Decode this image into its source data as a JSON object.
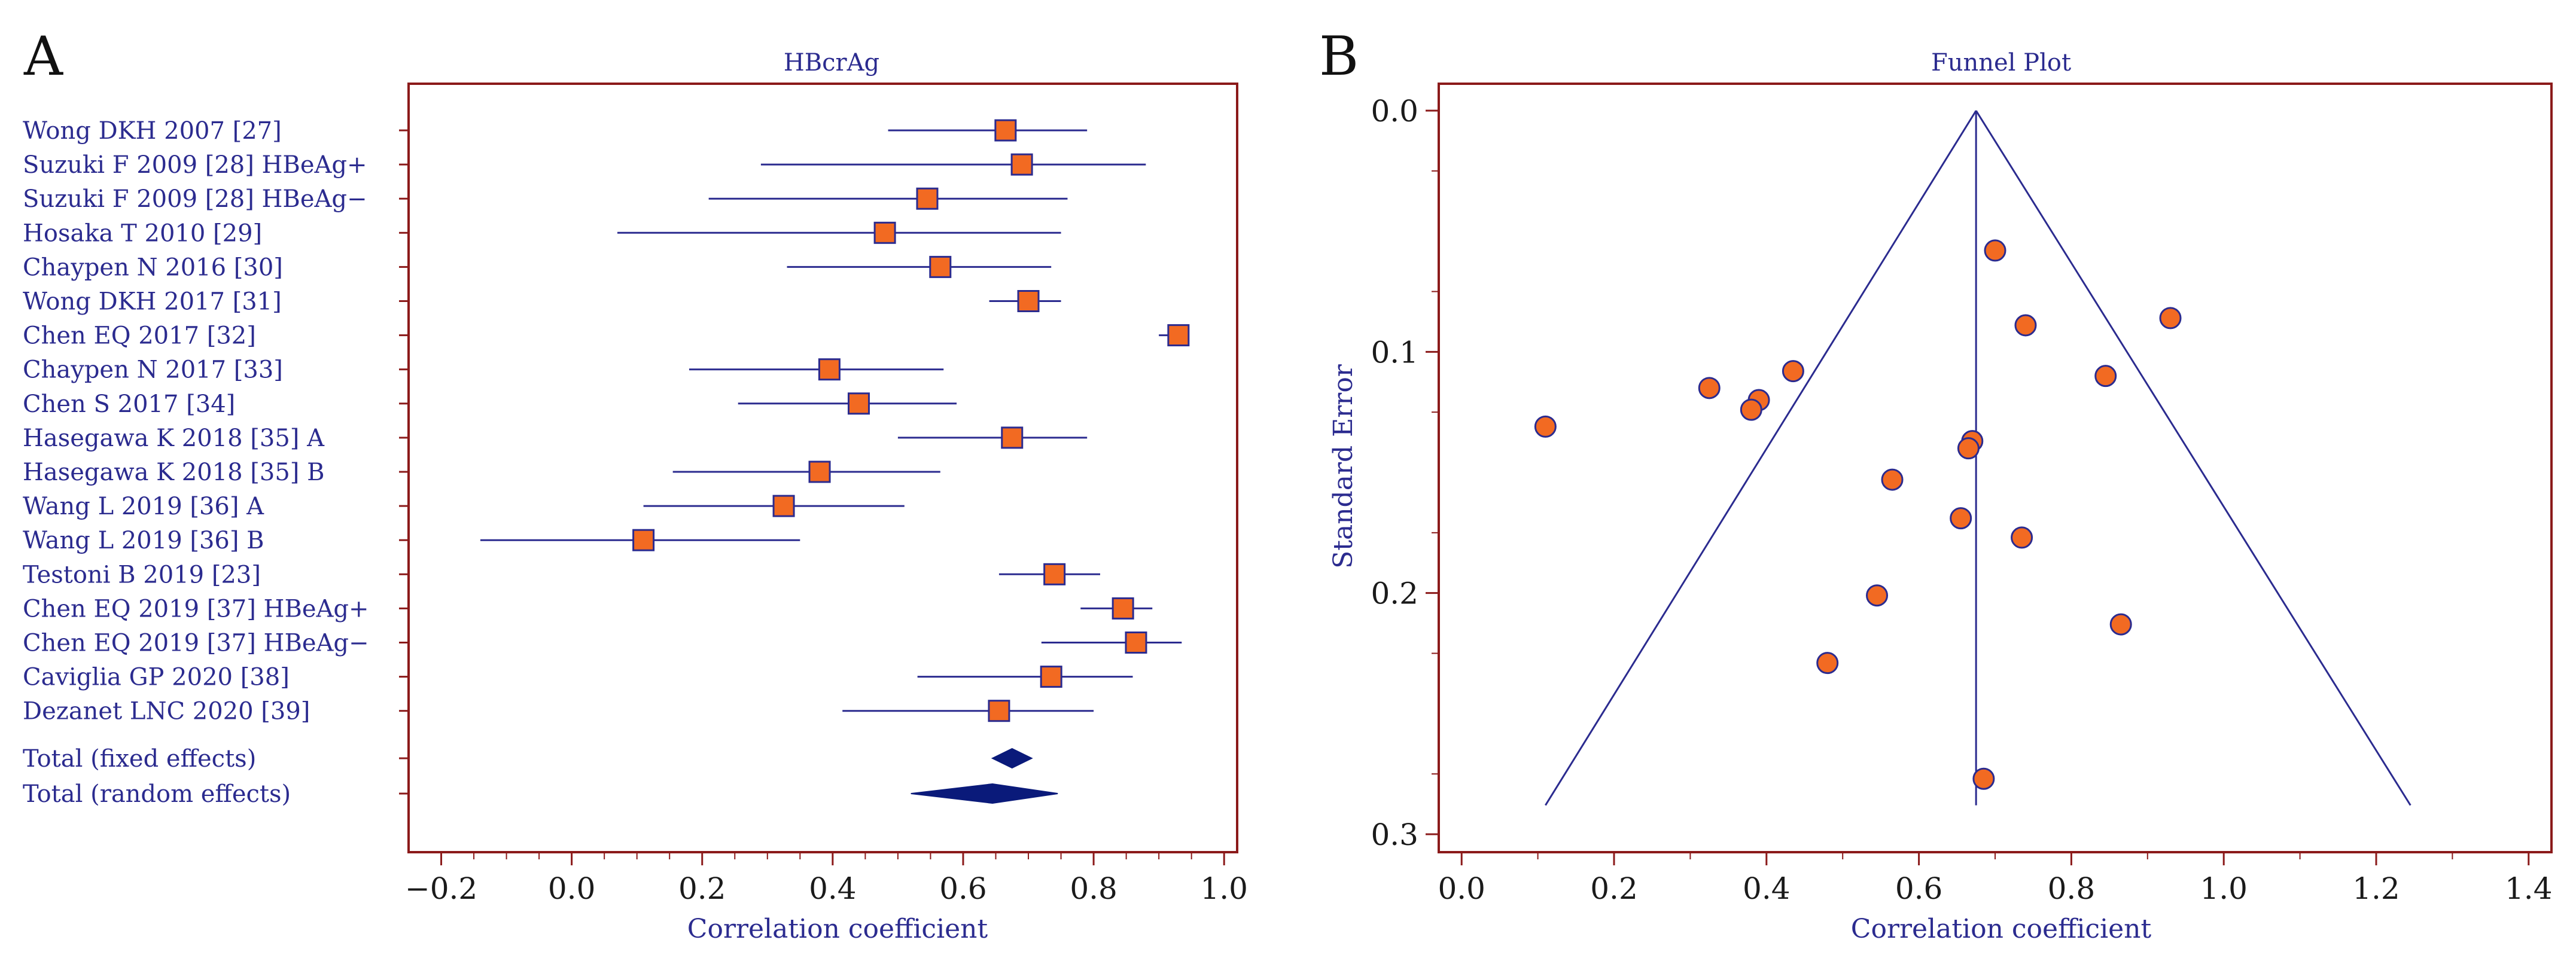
{
  "panel_a_label": "A",
  "panel_b_label": "B",
  "chart_data": [
    {
      "type": "forest",
      "title": "HBcrAg",
      "xlabel": "Correlation coefficient",
      "xlim": [
        -0.25,
        1.02
      ],
      "xticks": [
        -0.2,
        0.0,
        0.2,
        0.4,
        0.6,
        0.8,
        1.0
      ],
      "xtick_labels": [
        "−0.2",
        "0.0",
        "0.2",
        "0.4",
        "0.6",
        "0.8",
        "1.0"
      ],
      "studies": [
        {
          "label": "Wong DKH 2007 [27]",
          "estimate": 0.665,
          "ci_low": 0.485,
          "ci_high": 0.79
        },
        {
          "label": "Suzuki F 2009 [28] HBeAg+",
          "estimate": 0.69,
          "ci_low": 0.29,
          "ci_high": 0.88
        },
        {
          "label": "Suzuki F 2009 [28] HBeAg−",
          "estimate": 0.545,
          "ci_low": 0.21,
          "ci_high": 0.76
        },
        {
          "label": "Hosaka T 2010 [29]",
          "estimate": 0.48,
          "ci_low": 0.07,
          "ci_high": 0.75
        },
        {
          "label": "Chaypen N 2016 [30]",
          "estimate": 0.565,
          "ci_low": 0.33,
          "ci_high": 0.735
        },
        {
          "label": "Wong DKH 2017 [31]",
          "estimate": 0.7,
          "ci_low": 0.64,
          "ci_high": 0.75
        },
        {
          "label": "Chen EQ 2017 [32]",
          "estimate": 0.93,
          "ci_low": 0.9,
          "ci_high": 0.945
        },
        {
          "label": "Chaypen N 2017 [33]",
          "estimate": 0.395,
          "ci_low": 0.18,
          "ci_high": 0.57
        },
        {
          "label": "Chen S 2017 [34]",
          "estimate": 0.44,
          "ci_low": 0.255,
          "ci_high": 0.59
        },
        {
          "label": "Hasegawa K 2018 [35] A",
          "estimate": 0.675,
          "ci_low": 0.5,
          "ci_high": 0.79
        },
        {
          "label": "Hasegawa K 2018 [35] B",
          "estimate": 0.38,
          "ci_low": 0.155,
          "ci_high": 0.565
        },
        {
          "label": "Wang L 2019 [36] A",
          "estimate": 0.325,
          "ci_low": 0.11,
          "ci_high": 0.51
        },
        {
          "label": "Wang L 2019 [36] B",
          "estimate": 0.11,
          "ci_low": -0.14,
          "ci_high": 0.35
        },
        {
          "label": "Testoni B 2019 [23]",
          "estimate": 0.74,
          "ci_low": 0.655,
          "ci_high": 0.81
        },
        {
          "label": "Chen EQ 2019 [37] HBeAg+",
          "estimate": 0.845,
          "ci_low": 0.78,
          "ci_high": 0.89
        },
        {
          "label": "Chen EQ 2019 [37] HBeAg−",
          "estimate": 0.865,
          "ci_low": 0.72,
          "ci_high": 0.935
        },
        {
          "label": "Caviglia GP 2020 [38]",
          "estimate": 0.735,
          "ci_low": 0.53,
          "ci_high": 0.86
        },
        {
          "label": "Dezanet LNC 2020 [39]",
          "estimate": 0.655,
          "ci_low": 0.415,
          "ci_high": 0.8
        }
      ],
      "pooled": [
        {
          "label": "Total (fixed effects)",
          "estimate": 0.675,
          "ci_low": 0.645,
          "ci_high": 0.705
        },
        {
          "label": "Total (random effects)",
          "estimate": 0.645,
          "ci_low": 0.52,
          "ci_high": 0.745
        }
      ]
    },
    {
      "type": "scatter",
      "title": "Funnel Plot",
      "xlabel": "Correlation coefficient",
      "ylabel": "Standard Error",
      "xlim": [
        -0.03,
        1.43
      ],
      "ylim": [
        0.0,
        0.3
      ],
      "y_inverted": true,
      "xticks": [
        0.0,
        0.2,
        0.4,
        0.6,
        0.8,
        1.0,
        1.2,
        1.4
      ],
      "xtick_labels": [
        "0.0",
        "0.2",
        "0.4",
        "0.6",
        "0.8",
        "1.0",
        "1.2",
        "1.4"
      ],
      "yticks": [
        0.0,
        0.1,
        0.2,
        0.3
      ],
      "ytick_labels": [
        "0.0",
        "0.1",
        "0.2",
        "0.3"
      ],
      "summary_estimate": 0.675,
      "funnel_lines": [
        {
          "x1": 0.675,
          "y1": 0.0,
          "x2": 0.11,
          "y2": 0.288
        },
        {
          "x1": 0.675,
          "y1": 0.0,
          "x2": 1.245,
          "y2": 0.288
        }
      ],
      "points": [
        {
          "x": 0.7,
          "y": 0.058
        },
        {
          "x": 0.93,
          "y": 0.086
        },
        {
          "x": 0.74,
          "y": 0.089
        },
        {
          "x": 0.435,
          "y": 0.108
        },
        {
          "x": 0.325,
          "y": 0.115
        },
        {
          "x": 0.845,
          "y": 0.11
        },
        {
          "x": 0.39,
          "y": 0.12
        },
        {
          "x": 0.38,
          "y": 0.124
        },
        {
          "x": 0.11,
          "y": 0.131
        },
        {
          "x": 0.67,
          "y": 0.137
        },
        {
          "x": 0.665,
          "y": 0.14
        },
        {
          "x": 0.565,
          "y": 0.153
        },
        {
          "x": 0.655,
          "y": 0.169
        },
        {
          "x": 0.735,
          "y": 0.177
        },
        {
          "x": 0.545,
          "y": 0.201
        },
        {
          "x": 0.865,
          "y": 0.213
        },
        {
          "x": 0.48,
          "y": 0.229
        },
        {
          "x": 0.685,
          "y": 0.277
        }
      ]
    }
  ],
  "colors": {
    "frame": "#8b1a1a",
    "ink": "#2b2b8f",
    "marker": "#f26a22",
    "diamond": "#0a1a7a",
    "text": "#1a1a1a"
  }
}
